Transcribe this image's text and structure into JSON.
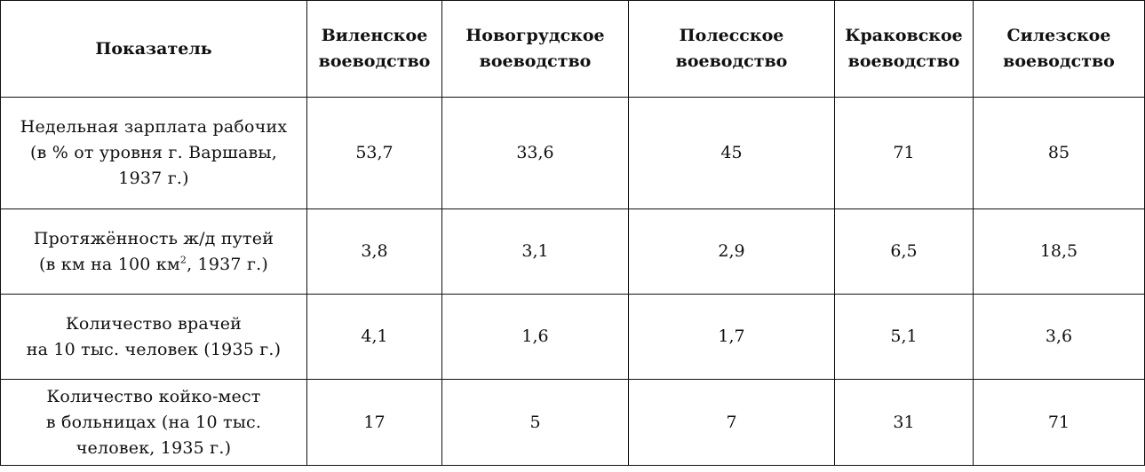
{
  "header": {
    "indicator": "Показатель",
    "regions": [
      [
        "Виленское",
        "воеводство"
      ],
      [
        "Новогрудское",
        "воеводство"
      ],
      [
        "Полесское",
        "воеводство"
      ],
      [
        "Краковское",
        "воеводство"
      ],
      [
        "Силезское",
        "воеводство"
      ]
    ]
  },
  "rows": [
    {
      "label_lines": [
        "Недельная зарплата рабочих",
        "(в % от уровня г. Варшавы,",
        "1937 г.)"
      ],
      "values": [
        "53,7",
        "33,6",
        "45",
        "71",
        "85"
      ]
    },
    {
      "label_lines": [
        "Протяжённость ж/д путей",
        "(в км на 100 км",
        "2",
        ", 1937 г.)"
      ],
      "values": [
        "3,8",
        "3,1",
        "2,9",
        "6,5",
        "18,5"
      ]
    },
    {
      "label_lines": [
        "Количество врачей",
        "на 10 тыс. человек (1935 г.)"
      ],
      "values": [
        "4,1",
        "1,6",
        "1,7",
        "5,1",
        "3,6"
      ]
    },
    {
      "label_lines": [
        "Количество койко-мест",
        "в больницах (на 10 тыс.",
        "человек, 1935 г.)"
      ],
      "values": [
        "17",
        "5",
        "7",
        "31",
        "71"
      ]
    }
  ]
}
